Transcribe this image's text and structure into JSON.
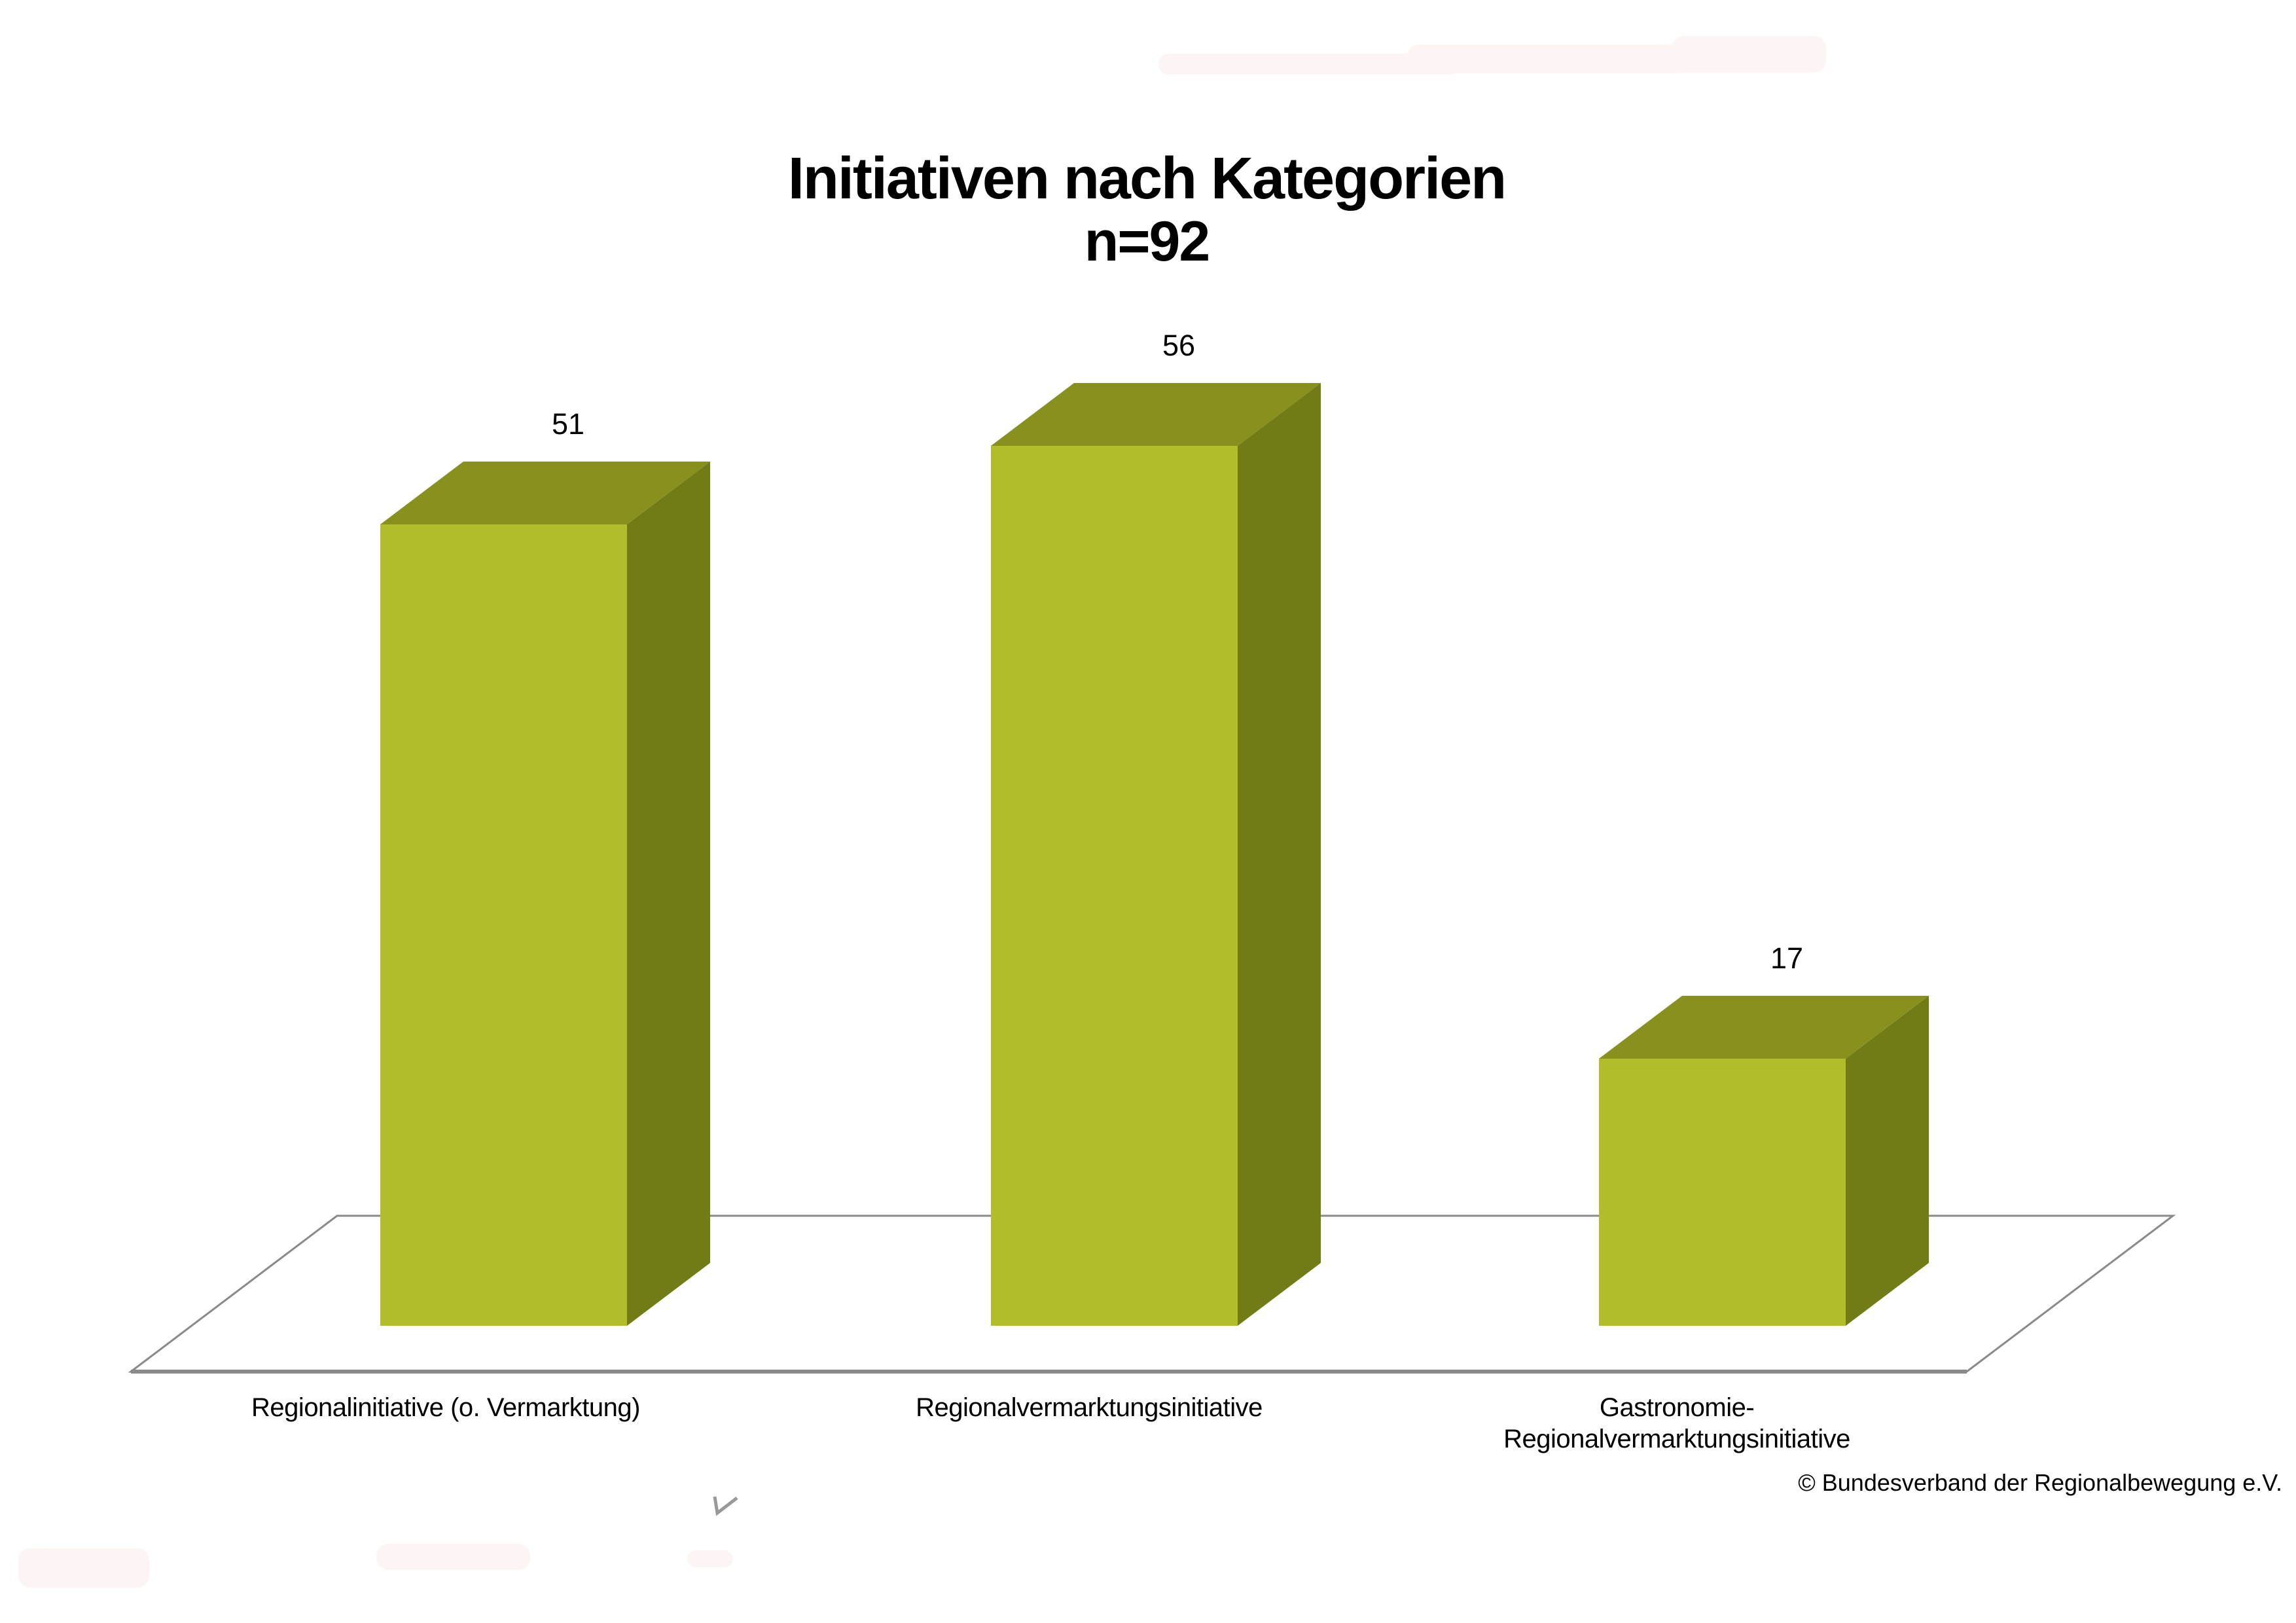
{
  "title": {
    "line1": "Initiativen nach Kategorien",
    "line2": "n=92"
  },
  "chart_data": {
    "type": "bar",
    "variant": "3d-column",
    "title": "Initiativen nach Kategorien",
    "subtitle": "n=92",
    "sample_size": 92,
    "categories": [
      "Regionalinitiative (o. Vermarktung)",
      "Regionalvermarktungsinitiative",
      "Gastronomie-Regionalvermarktungsinitiative"
    ],
    "category_lines": [
      [
        "Regionalinitiative (o. Vermarktung)"
      ],
      [
        "Regionalvermarktungsinitiative"
      ],
      [
        "Gastronomie-",
        "Regionalvermarktungsinitiative"
      ]
    ],
    "values": [
      51,
      56,
      17
    ],
    "value_labels": [
      "51",
      "56",
      "17"
    ],
    "xlabel": "",
    "ylabel": "",
    "ylim": [
      0,
      60
    ],
    "axes": "none",
    "grid": false,
    "legend": false,
    "colors": {
      "bar_front": "#b2bd2a",
      "bar_top": "#88911e",
      "bar_side": "#717c16",
      "floor_stroke": "#8a8a8a",
      "text": "#000000"
    }
  },
  "footer": {
    "copyright": "© Bundesverband der Regionalbewegung e.V."
  },
  "decorations": {
    "checkmark_color": "#999999"
  }
}
